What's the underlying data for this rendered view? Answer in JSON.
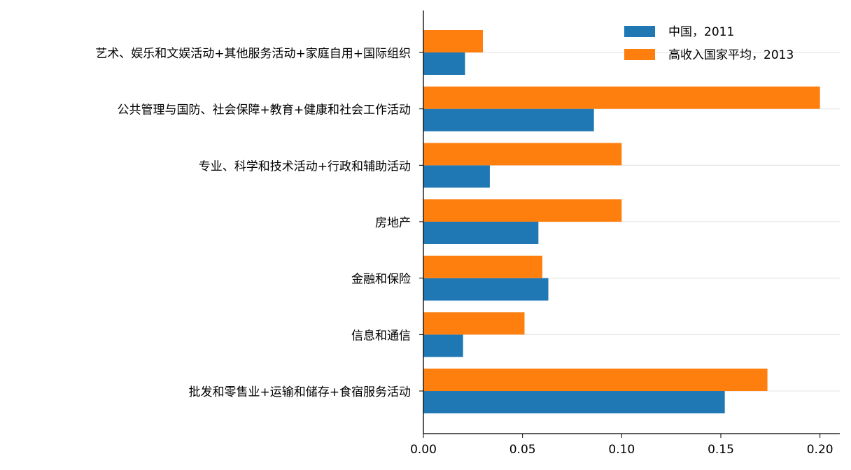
{
  "chart_data": {
    "type": "barh",
    "categories": [
      "艺术、娱乐和文娱活动+其他服务活动+家庭自用+国际组织",
      "公共管理与国防、社会保障+教育+健康和社会工作活动",
      "专业、科学和技术活动+行政和辅助活动",
      "房地产",
      "金融和保险",
      "信息和通信",
      "批发和零售业+运输和储存+食宿服务活动"
    ],
    "series": [
      {
        "name": "中国，2011",
        "color": "#1f77b4",
        "values": [
          0.021,
          0.086,
          0.0335,
          0.058,
          0.063,
          0.02,
          0.152
        ]
      },
      {
        "name": "高收入国家平均，2013",
        "color": "#ff7f0e",
        "values": [
          0.03,
          0.2,
          0.1,
          0.1,
          0.06,
          0.051,
          0.1735
        ]
      }
    ],
    "xlim": [
      0,
      0.21
    ],
    "xticks": [
      {
        "value": 0,
        "label": "0.00"
      },
      {
        "value": 0.05,
        "label": "0.05"
      },
      {
        "value": 0.1,
        "label": "0.10"
      },
      {
        "value": 0.15,
        "label": "0.15"
      },
      {
        "value": 0.2,
        "label": "0.20"
      }
    ],
    "grid": true,
    "legend": "upper right"
  }
}
